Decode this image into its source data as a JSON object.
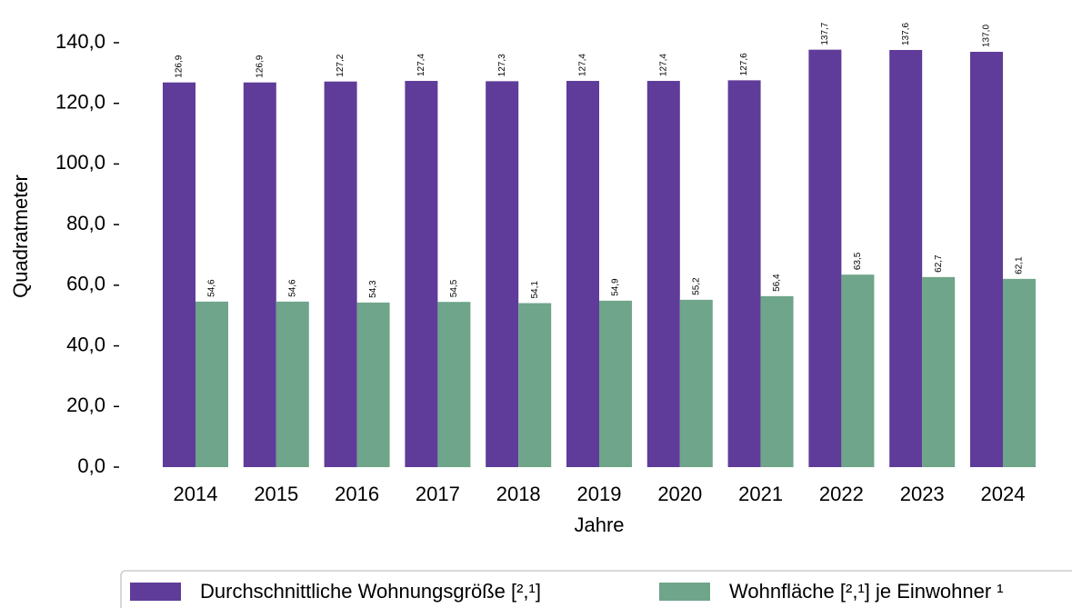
{
  "chart_data": {
    "type": "bar",
    "x_label": "Jahre",
    "y_label": "Quadratmeter",
    "categories": [
      "2014",
      "2015",
      "2016",
      "2017",
      "2018",
      "2019",
      "2020",
      "2021",
      "2022",
      "2023",
      "2024"
    ],
    "series": [
      {
        "name": "Durchschnittliche Wohnungsgröße [²,¹]",
        "color": "#5f3c99",
        "values": [
          126.9,
          126.9,
          127.2,
          127.4,
          127.3,
          127.4,
          127.4,
          127.6,
          137.7,
          137.6,
          137.0
        ],
        "value_labels": [
          "126,9",
          "126,9",
          "127,2",
          "127,4",
          "127,3",
          "127,4",
          "127,4",
          "127,6",
          "137,7",
          "137,6",
          "137,0"
        ]
      },
      {
        "name": "Wohnfläche [²,¹]  je Einwohner ¹",
        "color": "#6fa58a",
        "values": [
          54.6,
          54.6,
          54.3,
          54.5,
          54.1,
          54.9,
          55.2,
          56.4,
          63.5,
          62.7,
          62.1
        ],
        "value_labels": [
          "54,6",
          "54,6",
          "54,3",
          "54,5",
          "54,1",
          "54,9",
          "55,2",
          "56,4",
          "63,5",
          "62,7",
          "62,1"
        ]
      }
    ],
    "ylim": [
      0,
      140
    ],
    "yticks": [
      {
        "value": 0,
        "label": "0,0"
      },
      {
        "value": 20,
        "label": "20,0"
      },
      {
        "value": 40,
        "label": "40,0"
      },
      {
        "value": 60,
        "label": "60,0"
      },
      {
        "value": 80,
        "label": "80,0"
      },
      {
        "value": 100,
        "label": "100,0"
      },
      {
        "value": 120,
        "label": "120,0"
      },
      {
        "value": 140,
        "label": "140,0"
      }
    ],
    "grid": false,
    "legend": "bottom"
  }
}
